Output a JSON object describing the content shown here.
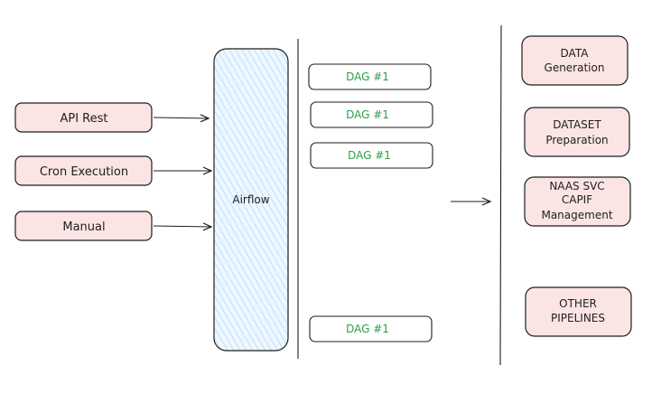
{
  "triggers": [
    {
      "label": "API Rest"
    },
    {
      "label": "Cron Execution"
    },
    {
      "label": "Manual"
    }
  ],
  "orchestrator": {
    "label": "Airflow"
  },
  "dags": [
    {
      "label": "DAG #1"
    },
    {
      "label": "DAG #1"
    },
    {
      "label": "DAG #1"
    },
    {
      "label": "DAG #1"
    }
  ],
  "pipelines": [
    {
      "lines": [
        "DATA",
        "Generation"
      ]
    },
    {
      "lines": [
        "DATASET",
        "Preparation"
      ]
    },
    {
      "lines": [
        "NAAS SVC",
        "CAPIF",
        "Management"
      ]
    },
    {
      "lines": [
        "OTHER",
        "PIPELINES"
      ]
    }
  ],
  "colors": {
    "trigger_fill": "#fbe4e4",
    "pipeline_fill": "#fbe4e4",
    "stroke": "#1e1e1e",
    "dag_text": "#2f9e44",
    "airflow_fill": "#a5d8ff"
  }
}
